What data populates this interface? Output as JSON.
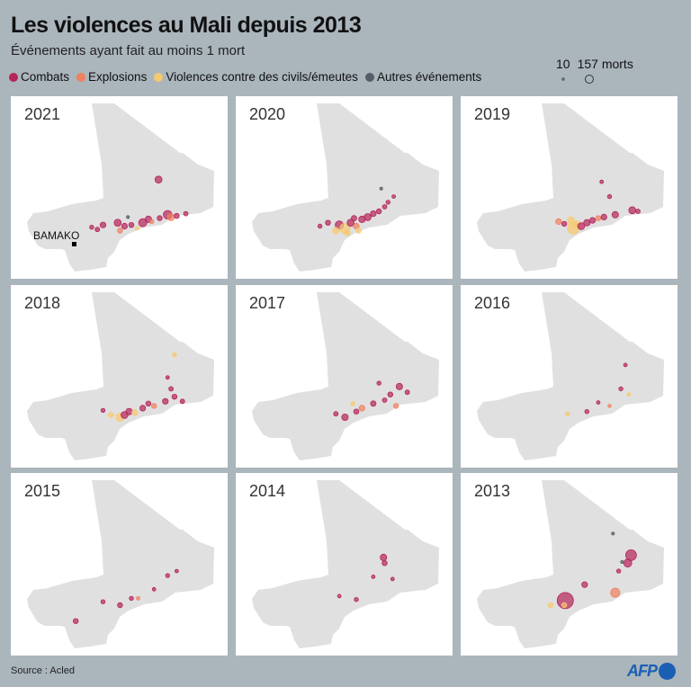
{
  "header": {
    "title": "Les violences au Mali depuis 2013",
    "subtitle": "Événements ayant fait au moins 1 mort"
  },
  "legend": {
    "categories": [
      {
        "label": "Combats",
        "color": "#b5245a"
      },
      {
        "label": "Explosions",
        "color": "#f0805e"
      },
      {
        "label": "Violences contre des civils/émeutes",
        "color": "#f7c96e"
      },
      {
        "label": "Autres événements",
        "color": "#555d66"
      }
    ],
    "size_min_label": "10",
    "size_max_label": "157 morts",
    "size_min": 10,
    "size_max": 157
  },
  "map": {
    "fill_color": "#e0e0e0",
    "city_label": "BAMAKO",
    "city_coords": [
      -8.0,
      12.65
    ]
  },
  "chart_data": {
    "type": "scatter",
    "title": "Les violences au Mali depuis 2013",
    "point_format": [
      "lon",
      "lat",
      "category_index",
      "deaths"
    ],
    "years": [
      {
        "year": "2021",
        "points": [
          [
            -4.2,
            14.5,
            0,
            30
          ],
          [
            -3.6,
            14.2,
            0,
            20
          ],
          [
            -3.0,
            14.3,
            0,
            15
          ],
          [
            -2.0,
            14.5,
            0,
            40
          ],
          [
            -1.5,
            14.8,
            0,
            25
          ],
          [
            -1.2,
            14.6,
            1,
            10
          ],
          [
            -0.5,
            14.9,
            0,
            15
          ],
          [
            0.2,
            15.2,
            0,
            45
          ],
          [
            0.5,
            15.0,
            1,
            30
          ],
          [
            1.0,
            15.1,
            0,
            15
          ],
          [
            1.8,
            15.3,
            0,
            12
          ],
          [
            -0.6,
            18.3,
            0,
            30
          ],
          [
            -5.5,
            14.3,
            0,
            20
          ],
          [
            -6.0,
            13.9,
            0,
            12
          ],
          [
            -4.0,
            13.8,
            1,
            15
          ],
          [
            -6.5,
            14.1,
            0,
            10
          ],
          [
            -2.5,
            14.0,
            2,
            8
          ],
          [
            -3.3,
            15.0,
            3,
            5
          ]
        ]
      },
      {
        "year": "2020",
        "points": [
          [
            -4.5,
            14.3,
            0,
            40
          ],
          [
            -4.0,
            14.0,
            2,
            60
          ],
          [
            -3.5,
            14.5,
            0,
            30
          ],
          [
            -3.0,
            14.2,
            1,
            20
          ],
          [
            -2.5,
            14.8,
            0,
            25
          ],
          [
            -2.0,
            15.0,
            0,
            30
          ],
          [
            -1.5,
            15.3,
            0,
            20
          ],
          [
            -1.0,
            15.5,
            0,
            15
          ],
          [
            -0.5,
            15.9,
            0,
            12
          ],
          [
            -0.2,
            16.3,
            0,
            10
          ],
          [
            -4.8,
            13.8,
            2,
            25
          ],
          [
            -5.5,
            14.5,
            0,
            15
          ],
          [
            -3.8,
            13.6,
            2,
            20
          ],
          [
            -6.2,
            14.2,
            0,
            10
          ],
          [
            -2.8,
            13.8,
            2,
            15
          ],
          [
            -3.2,
            14.9,
            0,
            18
          ],
          [
            0.3,
            16.8,
            0,
            8
          ],
          [
            -0.8,
            17.5,
            3,
            5
          ]
        ]
      },
      {
        "year": "2019",
        "points": [
          [
            -3.7,
            14.0,
            2,
            80
          ],
          [
            -3.4,
            14.3,
            2,
            40
          ],
          [
            -3.0,
            14.2,
            0,
            30
          ],
          [
            -2.5,
            14.5,
            0,
            25
          ],
          [
            -2.0,
            14.7,
            0,
            20
          ],
          [
            -1.5,
            14.9,
            1,
            15
          ],
          [
            -1.0,
            15.0,
            0,
            20
          ],
          [
            0.0,
            15.2,
            0,
            25
          ],
          [
            1.5,
            15.6,
            0,
            30
          ],
          [
            2.0,
            15.5,
            0,
            12
          ],
          [
            -4.5,
            14.4,
            0,
            15
          ],
          [
            -5.0,
            14.6,
            1,
            20
          ],
          [
            -3.9,
            14.7,
            2,
            30
          ],
          [
            -0.5,
            16.8,
            0,
            10
          ],
          [
            -1.2,
            18.1,
            0,
            8
          ]
        ]
      },
      {
        "year": "2018",
        "points": [
          [
            -4.0,
            14.0,
            2,
            40
          ],
          [
            -3.6,
            14.2,
            0,
            30
          ],
          [
            -3.2,
            14.5,
            0,
            25
          ],
          [
            -2.7,
            14.4,
            2,
            20
          ],
          [
            -2.0,
            14.8,
            0,
            20
          ],
          [
            -1.5,
            15.2,
            0,
            15
          ],
          [
            -1.0,
            15.0,
            1,
            15
          ],
          [
            0.0,
            15.4,
            0,
            20
          ],
          [
            0.8,
            15.8,
            0,
            15
          ],
          [
            1.5,
            15.4,
            0,
            12
          ],
          [
            -4.8,
            14.2,
            2,
            15
          ],
          [
            -5.5,
            14.6,
            0,
            10
          ],
          [
            0.5,
            16.5,
            0,
            12
          ],
          [
            0.8,
            19.5,
            2,
            10
          ],
          [
            0.2,
            17.5,
            0,
            8
          ]
        ]
      },
      {
        "year": "2017",
        "points": [
          [
            -4.0,
            14.0,
            0,
            25
          ],
          [
            -3.0,
            14.5,
            0,
            15
          ],
          [
            -2.5,
            14.8,
            1,
            20
          ],
          [
            -1.5,
            15.2,
            0,
            18
          ],
          [
            -0.5,
            15.5,
            0,
            12
          ],
          [
            0.0,
            16.0,
            0,
            15
          ],
          [
            0.8,
            16.7,
            0,
            25
          ],
          [
            1.5,
            16.2,
            0,
            12
          ],
          [
            -1.0,
            17.0,
            0,
            10
          ],
          [
            -4.8,
            14.3,
            0,
            12
          ],
          [
            -3.3,
            15.2,
            2,
            10
          ],
          [
            0.5,
            15.0,
            1,
            15
          ]
        ]
      },
      {
        "year": "2016",
        "points": [
          [
            -4.2,
            14.3,
            2,
            10
          ],
          [
            -2.5,
            14.5,
            0,
            10
          ],
          [
            -1.5,
            15.3,
            0,
            8
          ],
          [
            0.5,
            16.5,
            0,
            10
          ],
          [
            0.9,
            18.6,
            0,
            8
          ],
          [
            1.2,
            16.0,
            2,
            8
          ],
          [
            -0.5,
            15.0,
            1,
            6
          ]
        ]
      },
      {
        "year": "2015",
        "points": [
          [
            -4.0,
            14.0,
            0,
            15
          ],
          [
            -5.5,
            14.3,
            0,
            10
          ],
          [
            -3.0,
            14.6,
            0,
            10
          ],
          [
            -1.0,
            15.4,
            0,
            8
          ],
          [
            0.2,
            16.6,
            0,
            10
          ],
          [
            -7.9,
            12.6,
            0,
            15
          ],
          [
            -2.4,
            14.6,
            1,
            8
          ],
          [
            1.0,
            17.0,
            0,
            8
          ]
        ]
      },
      {
        "year": "2014",
        "points": [
          [
            -0.6,
            18.2,
            0,
            25
          ],
          [
            -0.5,
            17.7,
            0,
            15
          ],
          [
            -1.5,
            16.5,
            0,
            8
          ],
          [
            -3.0,
            14.5,
            0,
            10
          ],
          [
            0.2,
            16.3,
            0,
            8
          ],
          [
            -4.5,
            14.8,
            0,
            8
          ]
        ]
      },
      {
        "year": "2013",
        "points": [
          [
            1.4,
            18.4,
            0,
            70
          ],
          [
            1.1,
            17.7,
            0,
            40
          ],
          [
            0.3,
            17.0,
            0,
            10
          ],
          [
            -4.4,
            14.4,
            0,
            157
          ],
          [
            -2.7,
            15.8,
            0,
            20
          ],
          [
            0.0,
            15.1,
            1,
            50
          ],
          [
            -5.7,
            14.0,
            2,
            15
          ],
          [
            -4.5,
            14.0,
            2,
            15
          ],
          [
            0.6,
            17.8,
            3,
            5
          ],
          [
            -0.2,
            20.3,
            3,
            5
          ]
        ]
      }
    ]
  },
  "footer": {
    "source": "Source : Acled",
    "logo": "AFP"
  }
}
